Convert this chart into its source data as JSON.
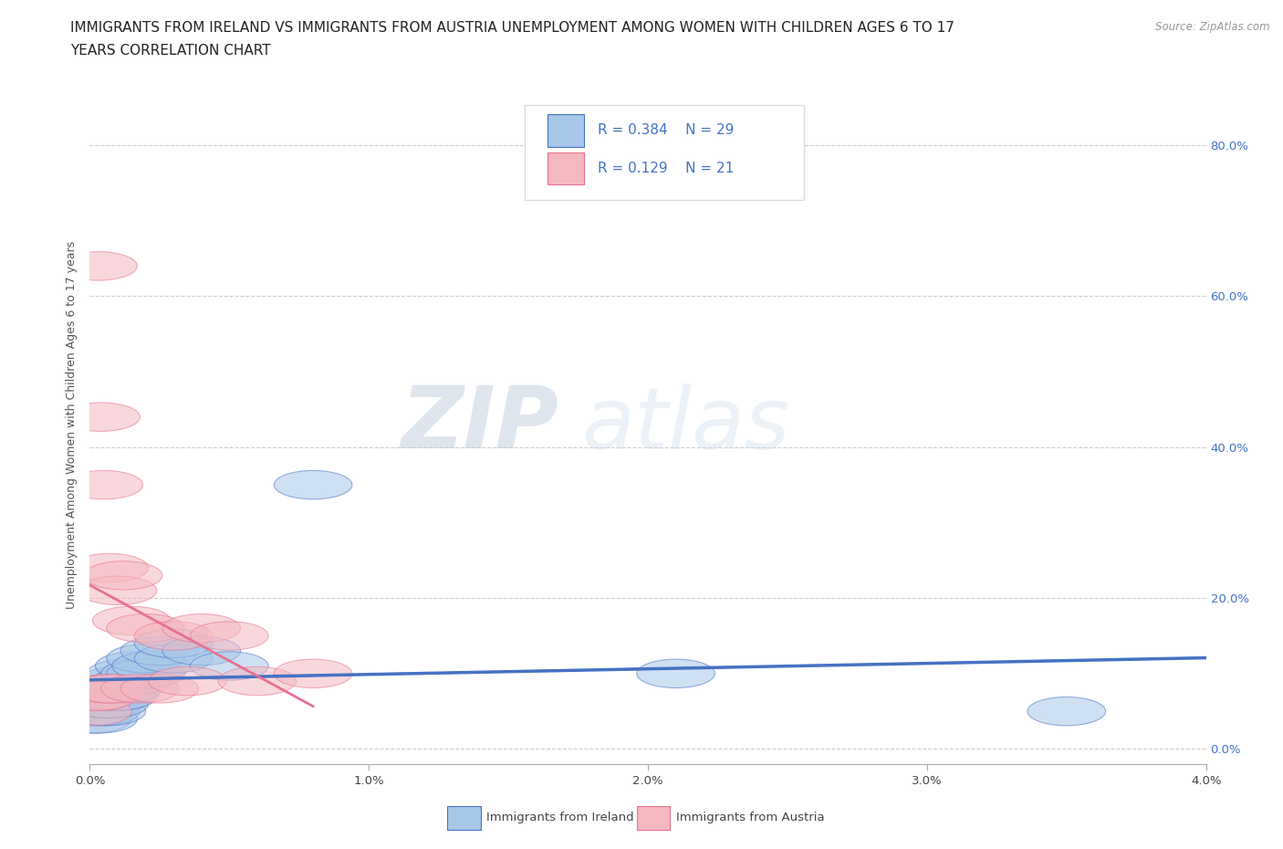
{
  "title_line1": "IMMIGRANTS FROM IRELAND VS IMMIGRANTS FROM AUSTRIA UNEMPLOYMENT AMONG WOMEN WITH CHILDREN AGES 6 TO 17",
  "title_line2": "YEARS CORRELATION CHART",
  "source": "Source: ZipAtlas.com",
  "ylabel": "Unemployment Among Women with Children Ages 6 to 17 years",
  "legend_ireland": "Immigrants from Ireland",
  "legend_austria": "Immigrants from Austria",
  "ireland_R": "0.384",
  "ireland_N": "29",
  "austria_R": "0.129",
  "austria_N": "21",
  "color_ireland": "#a8c8e8",
  "color_austria": "#f4b8c0",
  "color_ireland_line": "#4472c4",
  "color_austria_line": "#e87090",
  "ytick_labels": [
    "0.0%",
    "20.0%",
    "40.0%",
    "60.0%",
    "80.0%"
  ],
  "ytick_values": [
    0.0,
    0.2,
    0.4,
    0.6,
    0.8
  ],
  "ireland_x": [
    0.0001,
    0.0002,
    0.0003,
    0.0003,
    0.0004,
    0.0005,
    0.0006,
    0.0006,
    0.0007,
    0.0008,
    0.0009,
    0.001,
    0.001,
    0.0012,
    0.0013,
    0.0015,
    0.0016,
    0.0018,
    0.002,
    0.002,
    0.0022,
    0.0025,
    0.003,
    0.003,
    0.004,
    0.005,
    0.008,
    0.021,
    0.035
  ],
  "ireland_y": [
    0.04,
    0.05,
    0.04,
    0.06,
    0.05,
    0.06,
    0.05,
    0.07,
    0.06,
    0.08,
    0.07,
    0.07,
    0.09,
    0.08,
    0.1,
    0.09,
    0.11,
    0.1,
    0.1,
    0.12,
    0.11,
    0.13,
    0.12,
    0.14,
    0.13,
    0.11,
    0.35,
    0.1,
    0.05
  ],
  "austria_x": [
    0.0001,
    0.0002,
    0.0003,
    0.0003,
    0.0004,
    0.0005,
    0.0006,
    0.0007,
    0.0008,
    0.001,
    0.0012,
    0.0015,
    0.0018,
    0.002,
    0.0025,
    0.003,
    0.0035,
    0.004,
    0.005,
    0.006,
    0.008
  ],
  "austria_y": [
    0.05,
    0.07,
    0.64,
    0.07,
    0.44,
    0.35,
    0.08,
    0.24,
    0.08,
    0.21,
    0.23,
    0.17,
    0.08,
    0.16,
    0.08,
    0.15,
    0.09,
    0.16,
    0.15,
    0.09,
    0.1
  ],
  "xmin": 0.0,
  "xmax": 0.04,
  "ymin": -0.02,
  "ymax": 0.88,
  "background_color": "#ffffff",
  "grid_color": "#cccccc",
  "watermark_zip": "ZIP",
  "watermark_atlas": "atlas",
  "title_fontsize": 11,
  "axis_fontsize": 9.5
}
